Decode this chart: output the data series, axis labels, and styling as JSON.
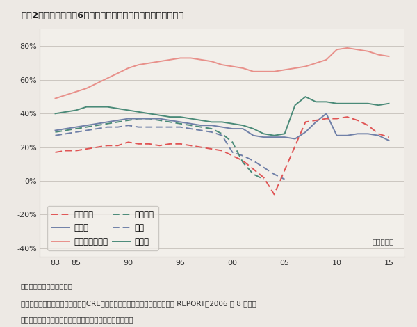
{
  "title": "図表2　大手スーパー6社：株主資本比率の推移（単体ベース）",
  "footnote1": "（備考）　図表１と同様。",
  "footnote2": "（資料）　百嶋徹「企業不動産（CRE）戦略と企業経営」『ニッセイ基礎研 REPORT』2006 年 8 月号、",
  "footnote3": "　　　　有価証券報告書等からニッセイ基礎研究所作成。",
  "nendomatu": "（年度末）",
  "bg_color": "#ede9e4",
  "plot_bg_color": "#f2efea",
  "years_x": [
    83,
    84,
    85,
    86,
    87,
    88,
    89,
    90,
    91,
    92,
    93,
    94,
    95,
    96,
    97,
    98,
    99,
    100,
    101,
    102,
    103,
    104,
    105,
    106,
    107,
    108,
    109,
    110,
    111,
    112,
    113,
    114,
    115
  ],
  "ito_yokado": [
    49,
    51,
    53,
    55,
    58,
    61,
    64,
    67,
    69,
    70,
    71,
    72,
    73,
    73,
    72,
    71,
    69,
    68,
    67,
    65,
    65,
    65,
    66,
    67,
    68,
    70,
    72,
    78,
    79,
    78,
    77,
    75,
    74
  ],
  "daiei": [
    17,
    18,
    18,
    19,
    20,
    21,
    21,
    23,
    22,
    22,
    21,
    22,
    22,
    21,
    20,
    19,
    18,
    15,
    12,
    7,
    2,
    -8,
    null,
    null,
    35,
    36,
    37,
    37,
    38,
    36,
    33,
    28,
    26
  ],
  "ion": [
    30,
    31,
    32,
    33,
    34,
    35,
    36,
    37,
    37,
    37,
    37,
    36,
    35,
    34,
    33,
    33,
    32,
    31,
    31,
    27,
    26,
    26,
    26,
    25,
    29,
    35,
    40,
    27,
    27,
    28,
    28,
    27,
    24
  ],
  "seiyu": [
    27,
    28,
    29,
    30,
    31,
    32,
    32,
    33,
    32,
    32,
    32,
    32,
    32,
    31,
    30,
    29,
    27,
    17,
    15,
    12,
    8,
    4,
    1,
    null,
    null,
    null,
    null,
    null,
    null,
    null,
    null,
    null,
    null
  ],
  "mycal": [
    29,
    30,
    31,
    32,
    33,
    34,
    35,
    36,
    37,
    37,
    36,
    35,
    34,
    33,
    32,
    31,
    28,
    23,
    11,
    4,
    1,
    null,
    null,
    null,
    null,
    null,
    null,
    null,
    null,
    null,
    null,
    null,
    null
  ],
  "uni": [
    40,
    41,
    42,
    44,
    44,
    44,
    43,
    42,
    41,
    40,
    39,
    38,
    38,
    37,
    36,
    35,
    35,
    34,
    33,
    31,
    28,
    27,
    28,
    45,
    50,
    47,
    47,
    46,
    46,
    46,
    46,
    45,
    46
  ],
  "xtick_positions": [
    83,
    85,
    90,
    95,
    100,
    105,
    110,
    115
  ],
  "xtick_labels": [
    "83",
    "85",
    "90",
    "95",
    "00",
    "05",
    "10",
    "15"
  ],
  "yticks": [
    -40,
    -20,
    0,
    20,
    40,
    60,
    80
  ],
  "xlim": [
    81.5,
    116.5
  ],
  "ylim": [
    -45,
    90
  ],
  "c_ito": "#e8908a",
  "c_daiei": "#e05555",
  "c_ion": "#7080a8",
  "c_seiyu": "#7080a8",
  "c_mycal": "#4a8a78",
  "c_uni": "#4a8a78",
  "lw": 1.4
}
